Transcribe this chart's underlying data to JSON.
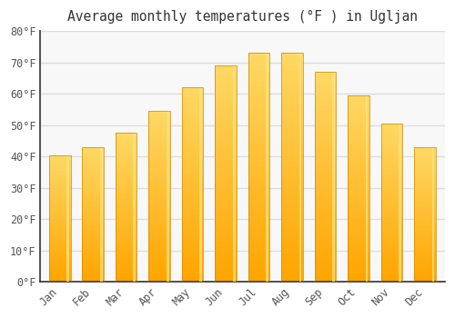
{
  "title": "Average monthly temperatures (°F ) in Ugljan",
  "categories": [
    "Jan",
    "Feb",
    "Mar",
    "Apr",
    "May",
    "Jun",
    "Jul",
    "Aug",
    "Sep",
    "Oct",
    "Nov",
    "Dec"
  ],
  "values": [
    40.5,
    43.0,
    47.5,
    54.5,
    62.0,
    69.0,
    73.0,
    73.0,
    67.0,
    59.5,
    50.5,
    43.0
  ],
  "bar_color_bottom": "#FFA500",
  "bar_color_top": "#FFD966",
  "bar_color_highlight": "#FFE680",
  "background_color": "#FFFFFF",
  "plot_bg_color": "#F8F8F8",
  "grid_color": "#DDDDDD",
  "spine_color": "#333333",
  "tick_color": "#555555",
  "title_color": "#333333",
  "ylim": [
    0,
    80
  ],
  "yticks": [
    0,
    10,
    20,
    30,
    40,
    50,
    60,
    70,
    80
  ],
  "ytick_labels": [
    "0°F",
    "10°F",
    "20°F",
    "30°F",
    "40°F",
    "50°F",
    "60°F",
    "70°F",
    "80°F"
  ],
  "font_family": "monospace",
  "title_fontsize": 10.5,
  "tick_fontsize": 8.5,
  "bar_width": 0.65,
  "gradient_steps": 80
}
